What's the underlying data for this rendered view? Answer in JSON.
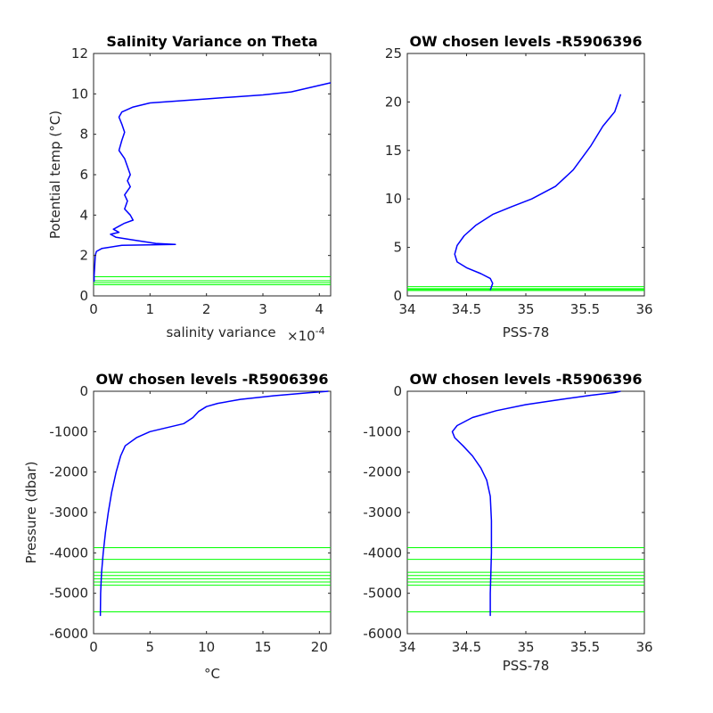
{
  "chart_data": [
    {
      "type": "line",
      "title": "Salinity Variance on Theta",
      "xlabel": "salinity variance",
      "x_exponent_label": "×10",
      "x_exponent_power": "-4",
      "ylabel": "Potential temp (°C)",
      "xlim": [
        0,
        4.2
      ],
      "ylim": [
        0,
        12
      ],
      "xticks": [
        0,
        1,
        2,
        3,
        4
      ],
      "xticklabels": [
        "0",
        "1",
        "2",
        "3",
        "4"
      ],
      "yticks": [
        0,
        2,
        4,
        6,
        8,
        10,
        12
      ],
      "yticklabels": [
        "0",
        "2",
        "4",
        "6",
        "8",
        "10",
        "12"
      ],
      "series": [
        {
          "color": "#0000ff",
          "points": [
            [
              4.2,
              10.55
            ],
            [
              3.5,
              10.1
            ],
            [
              3.0,
              9.95
            ],
            [
              2.5,
              9.85
            ],
            [
              2.0,
              9.75
            ],
            [
              1.5,
              9.65
            ],
            [
              1.0,
              9.55
            ],
            [
              0.7,
              9.35
            ],
            [
              0.5,
              9.1
            ],
            [
              0.45,
              8.85
            ],
            [
              0.5,
              8.5
            ],
            [
              0.55,
              8.1
            ],
            [
              0.5,
              7.7
            ],
            [
              0.45,
              7.2
            ],
            [
              0.55,
              6.8
            ],
            [
              0.6,
              6.4
            ],
            [
              0.65,
              6.0
            ],
            [
              0.6,
              5.7
            ],
            [
              0.65,
              5.4
            ],
            [
              0.55,
              5.0
            ],
            [
              0.6,
              4.7
            ],
            [
              0.55,
              4.3
            ],
            [
              0.65,
              4.0
            ],
            [
              0.7,
              3.75
            ],
            [
              0.55,
              3.6
            ],
            [
              0.45,
              3.45
            ],
            [
              0.35,
              3.3
            ],
            [
              0.45,
              3.15
            ],
            [
              0.3,
              3.05
            ],
            [
              0.4,
              2.9
            ],
            [
              0.75,
              2.75
            ],
            [
              1.1,
              2.6
            ],
            [
              1.45,
              2.55
            ],
            [
              0.5,
              2.5
            ],
            [
              0.15,
              2.35
            ],
            [
              0.05,
              2.2
            ],
            [
              0.03,
              2.0
            ],
            [
              0.02,
              1.5
            ],
            [
              0.01,
              1.0
            ],
            [
              0.01,
              0.7
            ]
          ]
        }
      ],
      "hlines": [
        0.55,
        0.65,
        0.75,
        0.95
      ],
      "hline_color": "#00ff00"
    },
    {
      "type": "line",
      "title": "OW chosen levels -R5906396",
      "xlabel": "PSS-78",
      "ylabel": "",
      "xlim": [
        34,
        36
      ],
      "ylim": [
        0,
        25
      ],
      "xticks": [
        34,
        34.5,
        35,
        35.5,
        36
      ],
      "xticklabels": [
        "34",
        "34.5",
        "35",
        "35.5",
        "36"
      ],
      "yticks": [
        0,
        5,
        10,
        15,
        20,
        25
      ],
      "yticklabels": [
        "0",
        "5",
        "10",
        "15",
        "20",
        "25"
      ],
      "series": [
        {
          "color": "#0000ff",
          "points": [
            [
              34.7,
              0.6
            ],
            [
              34.72,
              1.3
            ],
            [
              34.7,
              1.8
            ],
            [
              34.62,
              2.3
            ],
            [
              34.5,
              2.9
            ],
            [
              34.42,
              3.5
            ],
            [
              34.4,
              4.3
            ],
            [
              34.42,
              5.2
            ],
            [
              34.48,
              6.2
            ],
            [
              34.58,
              7.3
            ],
            [
              34.72,
              8.4
            ],
            [
              34.88,
              9.2
            ],
            [
              35.05,
              10.0
            ],
            [
              35.25,
              11.3
            ],
            [
              35.4,
              13.0
            ],
            [
              35.55,
              15.5
            ],
            [
              35.65,
              17.5
            ],
            [
              35.75,
              19.0
            ],
            [
              35.8,
              20.8
            ]
          ]
        }
      ],
      "hlines": [
        0.55,
        0.65,
        0.75,
        0.95
      ],
      "hline_color": "#00ff00"
    },
    {
      "type": "line",
      "title": "OW chosen levels -R5906396",
      "xlabel": "°C",
      "ylabel": "Pressure (dbar)",
      "xlim": [
        0,
        21
      ],
      "ylim": [
        -6000,
        0
      ],
      "xticks": [
        0,
        5,
        10,
        15,
        20
      ],
      "xticklabels": [
        "0",
        "5",
        "10",
        "15",
        "20"
      ],
      "yticks": [
        -6000,
        -5000,
        -4000,
        -3000,
        -2000,
        -1000,
        0
      ],
      "yticklabels": [
        "-6000",
        "-5000",
        "-4000",
        "-3000",
        "-2000",
        "-1000",
        "0"
      ],
      "series": [
        {
          "color": "#0000ff",
          "points": [
            [
              0.6,
              -5560
            ],
            [
              0.62,
              -5000
            ],
            [
              0.7,
              -4500
            ],
            [
              0.85,
              -4000
            ],
            [
              1.05,
              -3500
            ],
            [
              1.3,
              -3000
            ],
            [
              1.6,
              -2500
            ],
            [
              2.0,
              -2000
            ],
            [
              2.4,
              -1600
            ],
            [
              2.8,
              -1350
            ],
            [
              3.8,
              -1150
            ],
            [
              5.0,
              -1000
            ],
            [
              6.5,
              -900
            ],
            [
              8.0,
              -800
            ],
            [
              8.8,
              -650
            ],
            [
              9.3,
              -500
            ],
            [
              10.0,
              -380
            ],
            [
              11.0,
              -300
            ],
            [
              13.0,
              -200
            ],
            [
              16.0,
              -110
            ],
            [
              19.0,
              -40
            ],
            [
              20.8,
              0
            ]
          ]
        }
      ],
      "hlines": [
        -3870,
        -4160,
        -4480,
        -4560,
        -4640,
        -4720,
        -4800,
        -5460
      ],
      "hline_color": "#00ff00"
    },
    {
      "type": "line",
      "title": "OW chosen levels -R5906396",
      "xlabel": "PSS-78",
      "ylabel": "",
      "xlim": [
        34,
        36
      ],
      "ylim": [
        -6000,
        0
      ],
      "xticks": [
        34,
        34.5,
        35,
        35.5,
        36
      ],
      "xticklabels": [
        "34",
        "34.5",
        "35",
        "35.5",
        "36"
      ],
      "yticks": [
        -6000,
        -5000,
        -4000,
        -3000,
        -2000,
        -1000,
        0
      ],
      "yticklabels": [
        "-6000",
        "-5000",
        "-4000",
        "-3000",
        "-2000",
        "-1000",
        "0"
      ],
      "series": [
        {
          "color": "#0000ff",
          "points": [
            [
              34.7,
              -5560
            ],
            [
              34.7,
              -5000
            ],
            [
              34.71,
              -4000
            ],
            [
              34.71,
              -3200
            ],
            [
              34.7,
              -2600
            ],
            [
              34.67,
              -2200
            ],
            [
              34.62,
              -1900
            ],
            [
              34.55,
              -1600
            ],
            [
              34.47,
              -1350
            ],
            [
              34.4,
              -1150
            ],
            [
              34.38,
              -1000
            ],
            [
              34.42,
              -850
            ],
            [
              34.55,
              -650
            ],
            [
              34.75,
              -480
            ],
            [
              35.0,
              -330
            ],
            [
              35.3,
              -200
            ],
            [
              35.55,
              -100
            ],
            [
              35.75,
              -30
            ],
            [
              35.8,
              0
            ]
          ]
        }
      ],
      "hlines": [
        -3870,
        -4160,
        -4480,
        -4560,
        -4640,
        -4720,
        -4800,
        -5460
      ],
      "hline_color": "#00ff00"
    }
  ]
}
